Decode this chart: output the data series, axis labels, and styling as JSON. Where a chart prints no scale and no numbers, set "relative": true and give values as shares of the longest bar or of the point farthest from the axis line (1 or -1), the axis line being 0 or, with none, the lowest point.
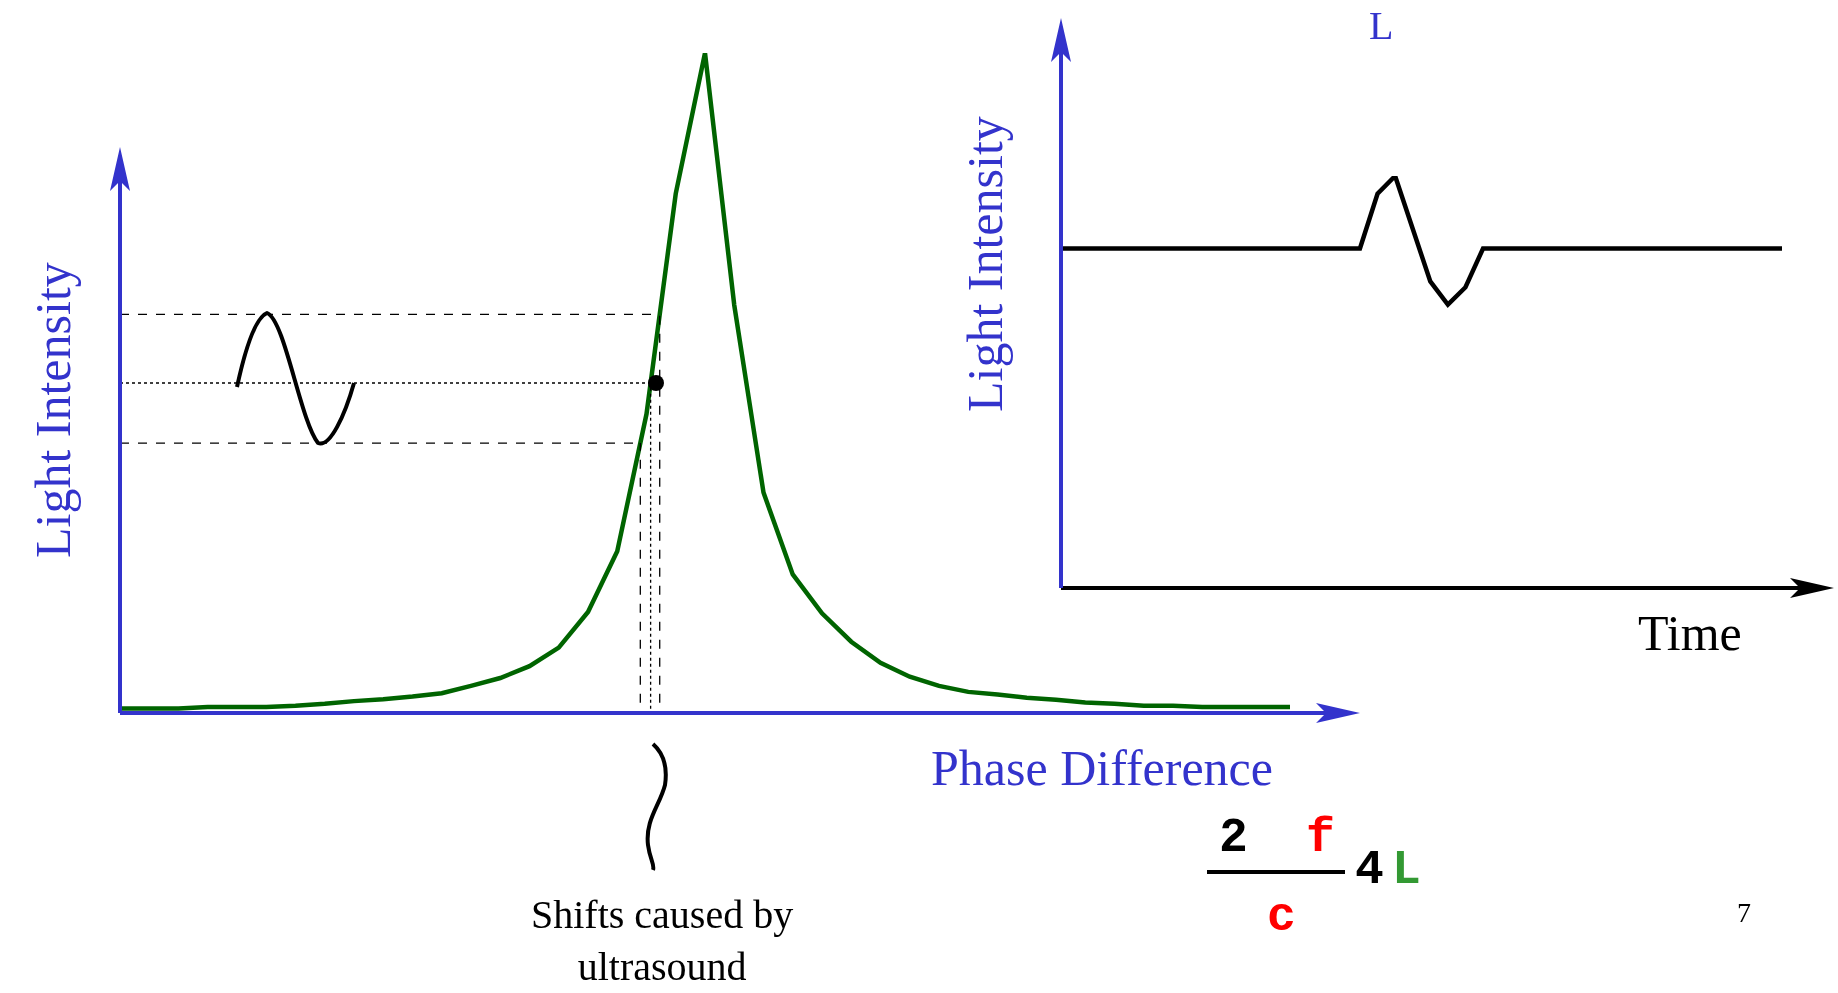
{
  "chart_data": [
    {
      "type": "line",
      "relative": true,
      "xlabel": "Phase Difference",
      "ylabel": "Light Intensity",
      "categories": [
        null,
        null,
        null,
        null,
        null,
        null,
        null,
        null,
        null,
        null,
        null,
        null,
        null,
        null,
        null,
        null,
        null,
        null,
        null,
        null,
        null,
        null,
        null,
        null,
        null,
        null,
        null,
        null,
        null,
        null,
        null,
        null,
        null,
        null,
        null,
        null,
        null,
        null,
        null,
        null,
        null
      ],
      "series": [
        {
          "color": "#006400",
          "values": [
            0.007,
            0.007,
            0.007,
            0.009,
            0.009,
            0.009,
            0.011,
            0.014,
            0.018,
            0.021,
            0.025,
            0.03,
            0.041,
            0.053,
            0.071,
            0.099,
            0.153,
            0.245,
            0.453,
            0.787,
            1,
            0.618,
            0.334,
            0.21,
            0.151,
            0.108,
            0.076,
            0.055,
            0.041,
            0.032,
            0.028,
            0.023,
            0.02,
            0.016,
            0.014,
            0.011,
            0.011,
            0.009,
            0.009,
            0.009,
            0.009
          ]
        }
      ],
      "ref_lines": [
        {
          "axis": "y",
          "value": 0.604,
          "line_style": "dashed"
        },
        {
          "axis": "y",
          "value": 0.5,
          "line_style": "dotted"
        },
        {
          "axis": "y",
          "value": 0.409,
          "line_style": "dashed"
        }
      ],
      "annotations": [
        "Shifts caused by\nultrasound",
        "2",
        "f",
        "c",
        "4",
        "L"
      ]
    },
    {
      "type": "line",
      "relative": true,
      "xlabel": "Time",
      "ylabel": "Light Intensity",
      "categories": [
        null,
        null,
        null,
        null,
        null,
        null,
        null,
        null,
        null,
        null,
        null,
        null,
        null,
        null,
        null,
        null,
        null,
        null,
        null,
        null,
        null,
        null,
        null,
        null,
        null,
        null,
        null,
        null,
        null,
        null,
        null,
        null,
        null,
        null,
        null,
        null,
        null,
        null,
        null,
        null,
        null,
        null
      ],
      "series": [
        {
          "color": "#000000",
          "values": [
            0.824,
            0.824,
            0.824,
            0.824,
            0.824,
            0.824,
            0.824,
            0.824,
            0.824,
            0.824,
            0.824,
            0.824,
            0.824,
            0.824,
            0.824,
            0.824,
            0.824,
            0.824,
            0.957,
            1,
            0.872,
            0.744,
            0.688,
            0.73,
            0.824,
            0.824,
            0.824,
            0.824,
            0.824,
            0.824,
            0.824,
            0.824,
            0.824,
            0.824,
            0.824,
            0.824,
            0.824,
            0.824,
            0.824,
            0.824,
            0.824,
            0.824
          ]
        }
      ],
      "annotations": [
        "L",
        "7"
      ]
    }
  ]
}
